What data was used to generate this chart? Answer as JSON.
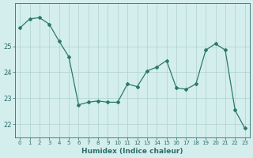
{
  "x": [
    0,
    1,
    2,
    3,
    4,
    5,
    6,
    7,
    8,
    9,
    10,
    11,
    12,
    13,
    14,
    15,
    16,
    17,
    18,
    19,
    20,
    21,
    22,
    23
  ],
  "y": [
    25.7,
    26.05,
    26.1,
    25.85,
    25.2,
    24.6,
    22.75,
    22.85,
    22.9,
    22.85,
    22.85,
    23.55,
    23.45,
    24.05,
    24.2,
    24.45,
    23.4,
    23.35,
    23.55,
    24.85,
    25.1,
    24.85,
    22.55,
    21.85
  ],
  "xlabel": "Humidex (Indice chaleur)",
  "ylim": [
    21.5,
    26.65
  ],
  "xlim": [
    -0.5,
    23.5
  ],
  "yticks": [
    22,
    23,
    24,
    25
  ],
  "xtick_labels": [
    "0",
    "1",
    "2",
    "3",
    "4",
    "5",
    "6",
    "7",
    "8",
    "9",
    "10",
    "11",
    "12",
    "13",
    "14",
    "15",
    "16",
    "17",
    "18",
    "19",
    "20",
    "21",
    "22",
    "23"
  ],
  "line_color": "#2a7a6a",
  "bg_color": "#d4eeed",
  "grid_color": "#aed0ce",
  "tick_color": "#2d6e6a"
}
